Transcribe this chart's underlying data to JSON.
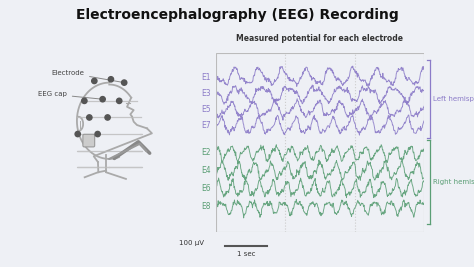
{
  "title": "Electroencephalography (EEG) Recording",
  "subtitle": "Measured potential for each electrode",
  "left_channels": [
    "E1",
    "E3",
    "E5",
    "E7"
  ],
  "right_channels": [
    "E2",
    "E4",
    "E6",
    "E8"
  ],
  "left_color": "#8B7BC8",
  "right_color": "#5A9E75",
  "brace_left_color": "#8B7BC8",
  "brace_right_color": "#5A9E75",
  "left_label": "Left hemisphere",
  "right_label": "Right hemisphere",
  "bg_color": "#EEF0F5",
  "title_color": "#111111",
  "scale_bar_text": "100 μV",
  "time_bar_text": "1 sec",
  "dashed_line_color": "#AAAAAA",
  "box_color": "#999999",
  "label_color": "#444444",
  "head_color": "#CCCCCC",
  "head_line_color": "#AAAAAA",
  "electrode_color": "#555555"
}
